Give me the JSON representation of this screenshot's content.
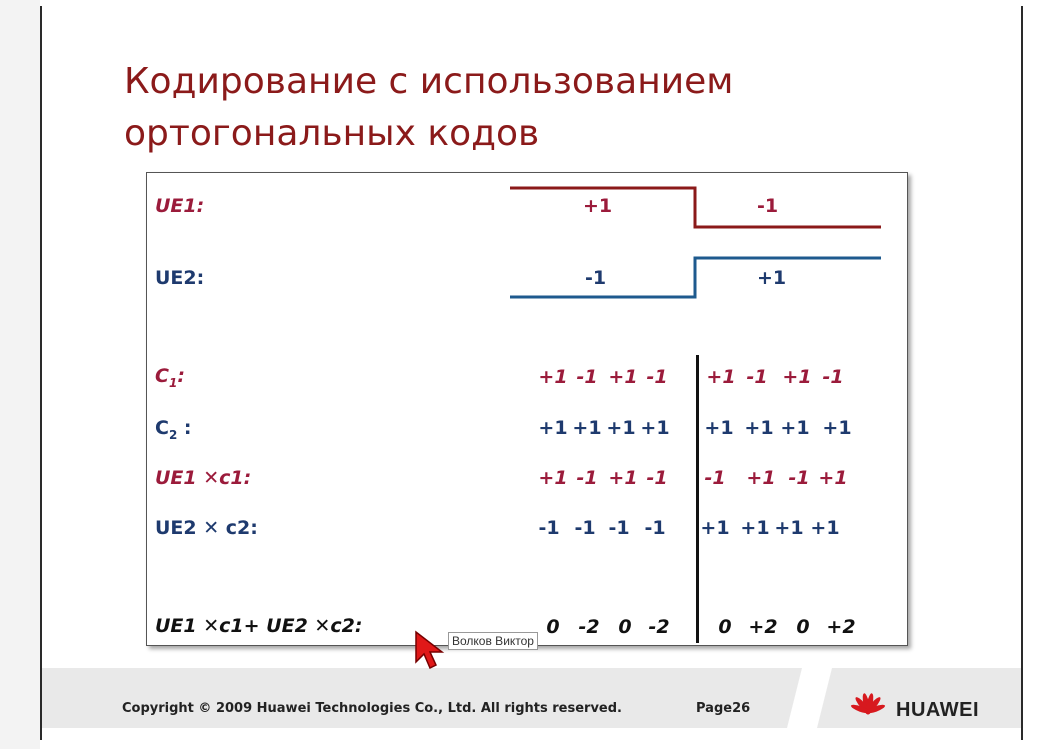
{
  "slide": {
    "title_line1": "Кодирование с использованием",
    "title_line2": "ортогональных кодов"
  },
  "signals": {
    "ue1_label": "UE1:",
    "ue1_left": "+1",
    "ue1_right": "-1",
    "ue2_label": "UE2:",
    "ue2_left": "-1",
    "ue2_right": "+1"
  },
  "rows": [
    {
      "label_main": "C",
      "label_sub": "1",
      "label_tail": ":",
      "style": "red",
      "left": [
        "+1",
        "-1",
        "+1",
        "-1"
      ],
      "right": [
        "+1",
        "-1",
        "+1",
        "-1"
      ]
    },
    {
      "label_main": "C",
      "label_sub": "2",
      "label_tail": " :",
      "style": "blue",
      "left": [
        "+1",
        "+1",
        "+1",
        "+1"
      ],
      "right": [
        "+1",
        "+1",
        "+1",
        "+1"
      ]
    },
    {
      "label": "UE1 ✕c1:",
      "style": "red",
      "left": [
        "+1",
        "-1",
        "+1",
        "-1"
      ],
      "right": [
        "-1",
        "+1",
        "-1",
        "+1"
      ]
    },
    {
      "label": "UE2 ✕ c2:",
      "style": "blue",
      "left": [
        "-1",
        "-1",
        "-1",
        "-1"
      ],
      "right": [
        "+1",
        "+1",
        "+1",
        "+1"
      ]
    },
    {
      "label": "UE1 ✕c1+ UE2 ✕c2:",
      "style": "blk",
      "left": [
        "0",
        "-2",
        "0",
        "-2"
      ],
      "right": [
        "0",
        "+2",
        "0",
        "+2"
      ]
    }
  ],
  "footer": {
    "copyright": "Copyright © 2009 Huawei Technologies Co., Ltd. All rights reserved.",
    "page": "Page26",
    "brand": "HUAWEI"
  },
  "overlay": {
    "presenter_tag": "Волков Виктор"
  },
  "colors": {
    "title": "#8b1a1a",
    "red_series": "#9b1b3b",
    "blue_series": "#1e3a6e",
    "brand_red": "#d7191e"
  },
  "icons": {
    "cursor": "mouse-pointer-icon",
    "logo": "huawei-petal-logo-icon"
  }
}
